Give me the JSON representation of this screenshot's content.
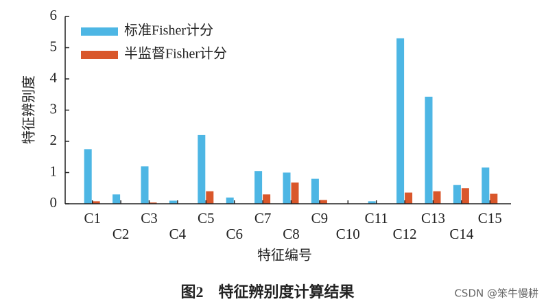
{
  "chart_data": {
    "type": "bar",
    "y_label": "特征辨别度",
    "x_label": "特征编号",
    "categories": [
      "C1",
      "C2",
      "C3",
      "C4",
      "C5",
      "C6",
      "C7",
      "C8",
      "C9",
      "C10",
      "C11",
      "C12",
      "C13",
      "C14",
      "C15"
    ],
    "series": [
      {
        "name": "标准Fisher计分",
        "color": "#4db6e4",
        "values": [
          1.75,
          0.3,
          1.2,
          0.1,
          2.2,
          0.2,
          1.05,
          1.0,
          0.8,
          0,
          0.08,
          5.3,
          3.43,
          0.6,
          1.16
        ]
      },
      {
        "name": "半监督Fisher计分",
        "color": "#d9572b",
        "values": [
          0.08,
          0,
          0.04,
          0,
          0.4,
          0,
          0.3,
          0.68,
          0.12,
          0,
          0,
          0.36,
          0.4,
          0.5,
          0.32
        ]
      }
    ],
    "ylim": [
      0,
      6
    ],
    "yticks": [
      0,
      1,
      2,
      3,
      4,
      5,
      6
    ],
    "legend": "upper left"
  },
  "caption": "图2　特征辨别度计算结果",
  "watermark": "CSDN @笨牛慢耕"
}
